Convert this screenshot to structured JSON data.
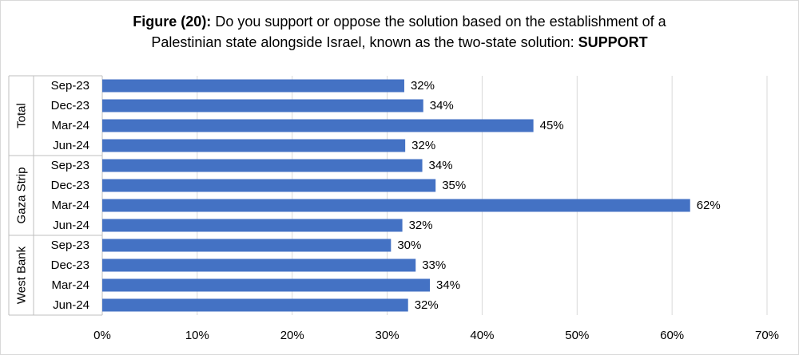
{
  "title": {
    "prefix": "Figure (20):",
    "line1": " Do you support or oppose the solution based on the establishment of a",
    "line2": "Palestinian state alongside Israel, known as the two-state solution: ",
    "suffix": "SUPPORT"
  },
  "chart_data": {
    "type": "bar",
    "orientation": "horizontal",
    "xlim": [
      0,
      70
    ],
    "x_ticks": [
      "0%",
      "10%",
      "20%",
      "30%",
      "40%",
      "50%",
      "60%",
      "70%"
    ],
    "x_tick_values": [
      0,
      10,
      20,
      30,
      40,
      50,
      60,
      70
    ],
    "grid": true,
    "bar_color": "#4472c4",
    "groups": [
      {
        "name": "Total",
        "categories": [
          "Sep-23",
          "Dec-23",
          "Mar-24",
          "Jun-24"
        ],
        "values": [
          32,
          34,
          45,
          32
        ],
        "plot_values": [
          31.8,
          33.8,
          45.4,
          31.9
        ],
        "labels": [
          "32%",
          "34%",
          "45%",
          "32%"
        ]
      },
      {
        "name": "Gaza Strip",
        "categories": [
          "Sep-23",
          "Dec-23",
          "Mar-24",
          "Jun-24"
        ],
        "values": [
          34,
          35,
          62,
          32
        ],
        "plot_values": [
          33.7,
          35.1,
          61.9,
          31.6
        ],
        "labels": [
          "34%",
          "35%",
          "62%",
          "32%"
        ]
      },
      {
        "name": "West Bank",
        "categories": [
          "Sep-23",
          "Dec-23",
          "Mar-24",
          "Jun-24"
        ],
        "values": [
          30,
          33,
          34,
          32
        ],
        "plot_values": [
          30.4,
          33.0,
          34.5,
          32.2
        ],
        "labels": [
          "30%",
          "33%",
          "34%",
          "32%"
        ]
      }
    ]
  }
}
